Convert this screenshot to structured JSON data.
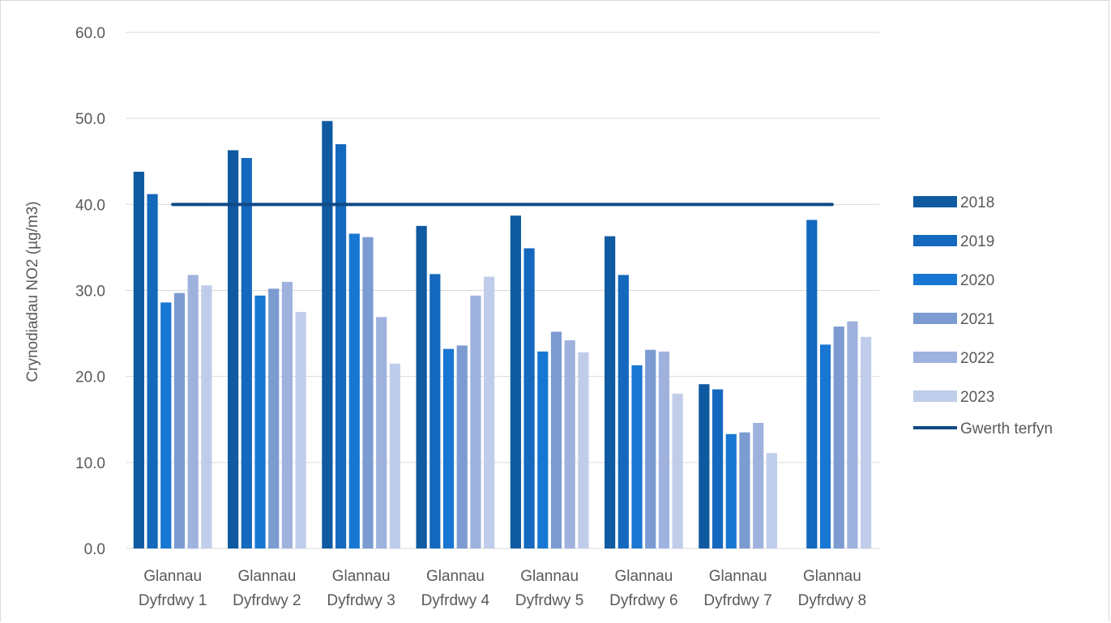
{
  "chart_data": {
    "type": "bar",
    "ylabel": "Crynodiadau NO2 (µg/m3)",
    "xlabel": "",
    "ylim": [
      0,
      60
    ],
    "yticks": [
      "0.0",
      "10.0",
      "20.0",
      "30.0",
      "40.0",
      "50.0",
      "60.0"
    ],
    "categories": [
      [
        "Glannau",
        "Dyfrdwy 1"
      ],
      [
        "Glannau",
        "Dyfrdwy 2"
      ],
      [
        "Glannau",
        "Dyfrdwy 3"
      ],
      [
        "Glannau",
        "Dyfrdwy 4"
      ],
      [
        "Glannau",
        "Dyfrdwy 5"
      ],
      [
        "Glannau",
        "Dyfrdwy 6"
      ],
      [
        "Glannau",
        "Dyfrdwy 7"
      ],
      [
        "Glannau",
        "Dyfrdwy 8"
      ]
    ],
    "series": [
      {
        "name": "2018",
        "color": "#0f5aa1",
        "values": [
          43.8,
          46.3,
          49.7,
          37.5,
          38.7,
          36.3,
          19.1,
          null
        ]
      },
      {
        "name": "2019",
        "color": "#1468bd",
        "values": [
          41.2,
          45.4,
          47.0,
          31.9,
          34.9,
          31.8,
          18.5,
          38.2
        ]
      },
      {
        "name": "2020",
        "color": "#1877d2",
        "values": [
          28.6,
          29.4,
          36.6,
          23.2,
          22.9,
          21.3,
          13.3,
          23.7
        ]
      },
      {
        "name": "2021",
        "color": "#7c9bd1",
        "values": [
          29.7,
          30.2,
          36.2,
          23.6,
          25.2,
          23.1,
          13.5,
          25.8
        ]
      },
      {
        "name": "2022",
        "color": "#9fb2de",
        "values": [
          31.8,
          31.0,
          26.9,
          29.4,
          24.2,
          22.9,
          14.6,
          26.4
        ]
      },
      {
        "name": "2023",
        "color": "#c0cdea",
        "values": [
          30.6,
          27.5,
          21.5,
          31.6,
          22.8,
          18.0,
          11.1,
          24.6
        ]
      }
    ],
    "limit_line": {
      "name": "Gwerth terfyn",
      "value": 40.0,
      "color": "#0f4a86"
    },
    "grid": true,
    "legend_position": "right"
  }
}
